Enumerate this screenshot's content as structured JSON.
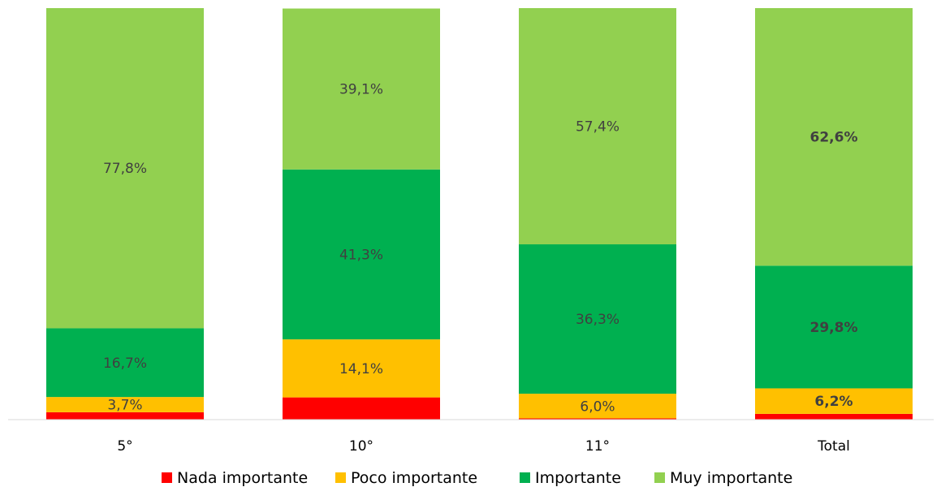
{
  "chart_data": {
    "type": "bar",
    "stacked": true,
    "percent_stacked": true,
    "categories": [
      "5°",
      "10°",
      "11°",
      "Total"
    ],
    "series": [
      {
        "name": "Nada importante",
        "color": "#ff0000",
        "values": [
          1.8,
          5.4,
          0.3,
          1.4
        ],
        "labels": [
          "",
          "",
          "",
          ""
        ]
      },
      {
        "name": "Poco importante",
        "color": "#ffc000",
        "values": [
          3.7,
          14.1,
          6.0,
          6.2
        ],
        "labels": [
          "3,7%",
          "14,1%",
          "6,0%",
          "6,2%"
        ]
      },
      {
        "name": "Importante",
        "color": "#00b050",
        "values": [
          16.7,
          41.3,
          36.3,
          29.8
        ],
        "labels": [
          "16,7%",
          "41,3%",
          "36,3%",
          "29,8%"
        ]
      },
      {
        "name": "Muy importante",
        "color": "#92d050",
        "values": [
          77.8,
          39.1,
          57.4,
          62.6
        ],
        "labels": [
          "77,8%",
          "39,1%",
          "57,4%",
          "62,6%"
        ]
      }
    ],
    "bold_label_categories": [
      "Total"
    ],
    "ylim": [
      0,
      100
    ],
    "title": "",
    "xlabel": "",
    "ylabel": "",
    "grid": false,
    "legend_position": "bottom"
  }
}
